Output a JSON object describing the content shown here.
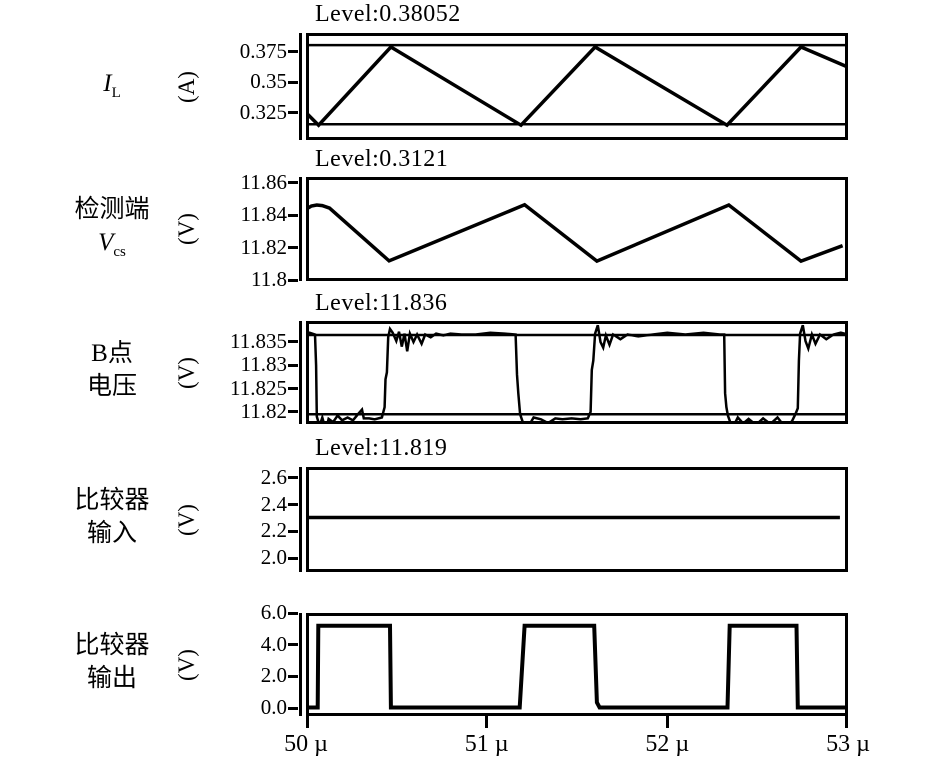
{
  "figure": {
    "background": "#ffffff",
    "line_color": "#000000"
  },
  "chart_data": {
    "type": "line",
    "grid": false,
    "legend": false,
    "x_axis": {
      "range": [
        50,
        53
      ],
      "tick_values": [
        50,
        51,
        52,
        53
      ],
      "tick_labels": [
        "50 µ",
        "51 µ",
        "52 µ",
        "53 µ"
      ],
      "unit": "µ (microseconds)"
    },
    "panels": [
      {
        "id": "inductor-current",
        "title": "Level:0.38052",
        "ylabel_lines": [
          {
            "text": "I",
            "italic": true,
            "sub": "L"
          }
        ],
        "unit": "(A)",
        "ylim": [
          0.3025,
          0.3905
        ],
        "ytick_values": [
          0.375,
          0.35,
          0.325
        ],
        "ytick_labels": [
          "0.375",
          "0.35",
          "0.325"
        ],
        "level_lines": [
          0.3805,
          0.3155
        ],
        "series": [
          [
            50.0,
            0.325
          ],
          [
            50.07,
            0.3147
          ],
          [
            50.47,
            0.379
          ],
          [
            51.19,
            0.3147
          ],
          [
            51.6,
            0.379
          ],
          [
            52.33,
            0.3147
          ],
          [
            52.74,
            0.379
          ],
          [
            52.99,
            0.363
          ]
        ]
      },
      {
        "id": "sense-voltage",
        "title": "Level:0.3121",
        "ylabel_lines": [
          {
            "text": "检测端"
          },
          {
            "text": "V",
            "italic": true,
            "sub": "cs"
          }
        ],
        "unit": "(V)",
        "ylim": [
          11.7994,
          11.8637
        ],
        "ytick_values": [
          11.86,
          11.84,
          11.82,
          11.8
        ],
        "ytick_labels": [
          "11.86",
          "11.84",
          "11.82",
          "11.8"
        ],
        "level_lines": [],
        "series": [
          [
            50.0,
            11.8437
          ],
          [
            50.03,
            11.8458
          ],
          [
            50.06,
            11.8464
          ],
          [
            50.09,
            11.846
          ],
          [
            50.13,
            11.8445
          ],
          [
            50.46,
            11.8118
          ],
          [
            51.21,
            11.8465
          ],
          [
            51.61,
            11.8117
          ],
          [
            52.34,
            11.8464
          ],
          [
            52.74,
            11.8117
          ],
          [
            52.97,
            11.8212
          ]
        ]
      },
      {
        "id": "node-b-voltage",
        "title": "Level:11.836",
        "ylabel_lines": [
          {
            "text": "B点"
          },
          {
            "text": "电压"
          }
        ],
        "unit": "(V)",
        "ylim": [
          11.8174,
          11.8395
        ],
        "ytick_values": [
          11.835,
          11.83,
          11.825,
          11.82
        ],
        "ytick_labels": [
          "11.835",
          "11.83",
          "11.825",
          "11.82"
        ],
        "level_lines": [
          11.8365,
          11.8195
        ],
        "series": [
          [
            50.0,
            11.8366
          ],
          [
            50.02,
            11.837
          ],
          [
            50.05,
            11.8366
          ],
          [
            50.056,
            11.83
          ],
          [
            50.06,
            11.819
          ],
          [
            50.075,
            11.817
          ],
          [
            50.09,
            11.8188
          ],
          [
            50.11,
            11.816
          ],
          [
            50.125,
            11.8185
          ],
          [
            50.15,
            11.8178
          ],
          [
            50.175,
            11.8192
          ],
          [
            50.2,
            11.8182
          ],
          [
            50.23,
            11.8188
          ],
          [
            50.26,
            11.8182
          ],
          [
            50.29,
            11.8196
          ],
          [
            50.31,
            11.8205
          ],
          [
            50.32,
            11.8186
          ],
          [
            50.35,
            11.8186
          ],
          [
            50.38,
            11.8184
          ],
          [
            50.42,
            11.8188
          ],
          [
            50.435,
            11.821
          ],
          [
            50.44,
            11.827
          ],
          [
            50.448,
            11.8285
          ],
          [
            50.455,
            11.836
          ],
          [
            50.465,
            11.8378
          ],
          [
            50.48,
            11.837
          ],
          [
            50.5,
            11.8352
          ],
          [
            50.515,
            11.8372
          ],
          [
            50.53,
            11.834
          ],
          [
            50.545,
            11.8368
          ],
          [
            50.56,
            11.833
          ],
          [
            50.575,
            11.8368
          ],
          [
            50.595,
            11.835
          ],
          [
            50.615,
            11.8366
          ],
          [
            50.64,
            11.8346
          ],
          [
            50.66,
            11.8366
          ],
          [
            50.69,
            11.836
          ],
          [
            50.72,
            11.8368
          ],
          [
            50.76,
            11.8364
          ],
          [
            50.8,
            11.8368
          ],
          [
            50.86,
            11.8366
          ],
          [
            50.94,
            11.8366
          ],
          [
            51.02,
            11.837
          ],
          [
            51.1,
            11.8368
          ],
          [
            51.16,
            11.8366
          ],
          [
            51.168,
            11.828
          ],
          [
            51.175,
            11.824
          ],
          [
            51.185,
            11.8195
          ],
          [
            51.2,
            11.8178
          ],
          [
            51.23,
            11.8168
          ],
          [
            51.26,
            11.8188
          ],
          [
            51.3,
            11.8184
          ],
          [
            51.34,
            11.8176
          ],
          [
            51.38,
            11.8186
          ],
          [
            51.42,
            11.8184
          ],
          [
            51.47,
            11.8186
          ],
          [
            51.52,
            11.8184
          ],
          [
            51.56,
            11.8186
          ],
          [
            51.575,
            11.82
          ],
          [
            51.582,
            11.829
          ],
          [
            51.59,
            11.831
          ],
          [
            51.6,
            11.8368
          ],
          [
            51.615,
            11.8386
          ],
          [
            51.63,
            11.835
          ],
          [
            51.645,
            11.8338
          ],
          [
            51.66,
            11.8364
          ],
          [
            51.68,
            11.8344
          ],
          [
            51.7,
            11.8366
          ],
          [
            51.74,
            11.8356
          ],
          [
            51.78,
            11.8366
          ],
          [
            51.84,
            11.8362
          ],
          [
            51.92,
            11.8366
          ],
          [
            52.0,
            11.837
          ],
          [
            52.1,
            11.8366
          ],
          [
            52.2,
            11.837
          ],
          [
            52.29,
            11.8366
          ],
          [
            52.315,
            11.8366
          ],
          [
            52.32,
            11.824
          ],
          [
            52.327,
            11.821
          ],
          [
            52.335,
            11.8192
          ],
          [
            52.36,
            11.8165
          ],
          [
            52.39,
            11.8188
          ],
          [
            52.42,
            11.8175
          ],
          [
            52.45,
            11.8185
          ],
          [
            52.49,
            11.8172
          ],
          [
            52.53,
            11.8186
          ],
          [
            52.57,
            11.8174
          ],
          [
            52.61,
            11.8188
          ],
          [
            52.65,
            11.8168
          ],
          [
            52.69,
            11.818
          ],
          [
            52.71,
            11.8196
          ],
          [
            52.722,
            11.8208
          ],
          [
            52.728,
            11.831
          ],
          [
            52.735,
            11.8368
          ],
          [
            52.75,
            11.8386
          ],
          [
            52.765,
            11.8352
          ],
          [
            52.78,
            11.8336
          ],
          [
            52.8,
            11.8366
          ],
          [
            52.82,
            11.8346
          ],
          [
            52.845,
            11.8366
          ],
          [
            52.88,
            11.8356
          ],
          [
            52.92,
            11.8366
          ],
          [
            52.96,
            11.837
          ],
          [
            53.0,
            11.8366
          ]
        ]
      },
      {
        "id": "comparator-input",
        "title": "Level:11.819",
        "ylabel_lines": [
          {
            "text": "比较器"
          },
          {
            "text": "输入"
          }
        ],
        "unit": "(V)",
        "ylim": [
          1.896,
          2.6815
        ],
        "ytick_values": [
          2.6,
          2.4,
          2.2,
          2.0
        ],
        "ytick_labels": [
          "2.6",
          "2.4",
          "2.2",
          "2.0"
        ],
        "level_lines": [],
        "series": [
          [
            50.0,
            2.304
          ],
          [
            52.955,
            2.304
          ]
        ]
      },
      {
        "id": "comparator-output",
        "title": "",
        "ylabel_lines": [
          {
            "text": "比较器"
          },
          {
            "text": "输出"
          }
        ],
        "unit": "(V)",
        "ylim": [
          -0.505,
          6.0
        ],
        "ytick_values": [
          6.0,
          4.0,
          2.0,
          0.0
        ],
        "ytick_labels": [
          "6.0",
          "4.0",
          "2.0",
          "0.0"
        ],
        "level_lines": [],
        "series": [
          [
            50.0,
            0.03
          ],
          [
            50.065,
            0.03
          ],
          [
            50.068,
            5.2
          ],
          [
            50.465,
            5.2
          ],
          [
            50.47,
            0.03
          ],
          [
            51.183,
            0.03
          ],
          [
            51.21,
            5.2
          ],
          [
            51.595,
            5.2
          ],
          [
            51.61,
            0.35
          ],
          [
            51.625,
            0.03
          ],
          [
            52.333,
            0.03
          ],
          [
            52.345,
            5.2
          ],
          [
            52.715,
            5.2
          ],
          [
            52.722,
            0.03
          ],
          [
            53.0,
            0.03
          ]
        ]
      }
    ]
  }
}
